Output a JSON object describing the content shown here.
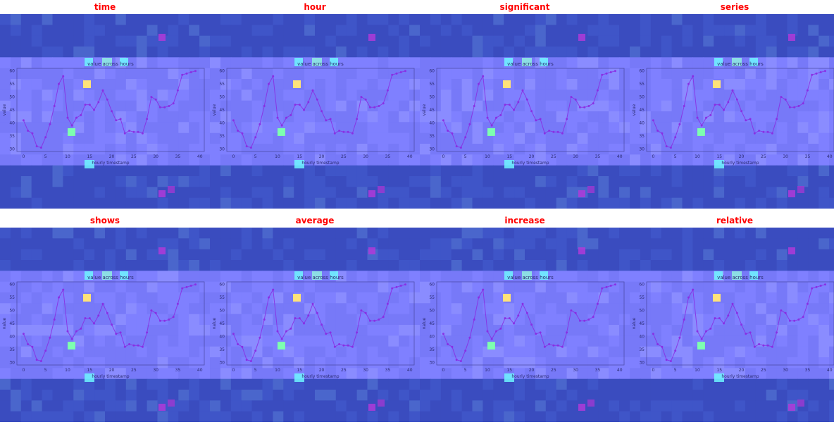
{
  "panels": [
    {
      "word": "time"
    },
    {
      "word": "hour"
    },
    {
      "word": "significant"
    },
    {
      "word": "series"
    },
    {
      "word": "shows"
    },
    {
      "word": "average"
    },
    {
      "word": "increase"
    },
    {
      "word": "relative"
    }
  ],
  "colors": {
    "title": "#ff0000",
    "heat_low": "#3a4fc6",
    "heat_mid": "#7b7cff",
    "heat_hot_cyan": "#6ff6ff",
    "heat_hot_green": "#7dff9a",
    "heat_hot_magenta": "#b03ad8",
    "line": "#8a2be2",
    "marker_yellow": "#ffe27a",
    "marker_green": "#7dffb0"
  },
  "chart_data": {
    "type": "line",
    "title": "value across hours",
    "xlabel": "hourly timestamp",
    "ylabel": "value",
    "x": [
      0,
      1,
      2,
      3,
      4,
      5,
      6,
      7,
      8,
      9,
      10,
      11,
      12,
      13,
      14,
      15,
      16,
      17,
      18,
      19,
      20,
      21,
      22,
      23,
      24,
      25,
      26,
      27,
      28,
      29,
      30,
      31,
      32,
      33,
      34,
      35,
      36,
      37,
      38,
      39
    ],
    "values": [
      41,
      37,
      36,
      31,
      30.5,
      34.5,
      39.5,
      46.5,
      55,
      58,
      42,
      39,
      42,
      43,
      47,
      47,
      45,
      48,
      52.5,
      49,
      44.5,
      41,
      41.5,
      36,
      37,
      36.5,
      36.5,
      36,
      41.5,
      50,
      49,
      46,
      46,
      46.5,
      47.5,
      52.5,
      58.5,
      59,
      59.5,
      60
    ],
    "xlim": [
      -1.5,
      41
    ],
    "ylim": [
      29,
      61
    ],
    "xticks": [
      0,
      5,
      10,
      15,
      20,
      25,
      30,
      35,
      40
    ],
    "yticks": [
      30,
      35,
      40,
      45,
      50,
      55,
      60
    ]
  }
}
